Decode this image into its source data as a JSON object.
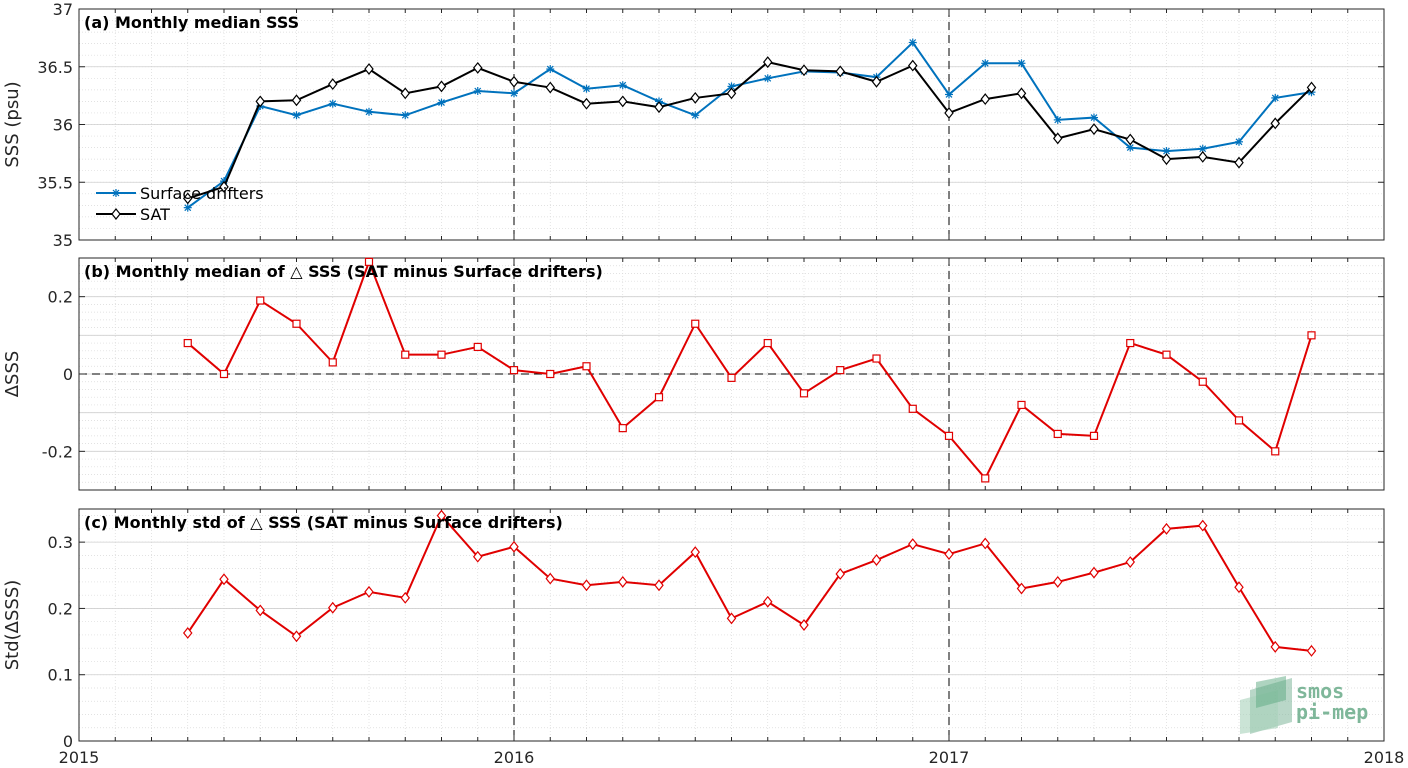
{
  "chart_data": [
    {
      "type": "line",
      "title": "(a) Monthly median SSS",
      "xlabel": "",
      "ylabel": "SSS (psu)",
      "xlim": [
        "2015-01",
        "2018-01"
      ],
      "ylim": [
        35,
        37
      ],
      "yticks": [
        "35",
        "35.5",
        "36",
        "36.5",
        "37"
      ],
      "grid": true,
      "legend": "bottom-left",
      "x": [
        "2015-04",
        "2015-05",
        "2015-06",
        "2015-07",
        "2015-08",
        "2015-09",
        "2015-10",
        "2015-11",
        "2015-12",
        "2016-01",
        "2016-02",
        "2016-03",
        "2016-04",
        "2016-05",
        "2016-06",
        "2016-07",
        "2016-08",
        "2016-09",
        "2016-10",
        "2016-11",
        "2016-12",
        "2017-01",
        "2017-02",
        "2017-03",
        "2017-04",
        "2017-05",
        "2017-06",
        "2017-07",
        "2017-08",
        "2017-09",
        "2017-10",
        "2017-11"
      ],
      "series": [
        {
          "name": "Surface drifters",
          "color": "#0072bd",
          "marker": "asterisk",
          "values": [
            35.28,
            35.51,
            36.16,
            36.08,
            36.18,
            36.11,
            36.08,
            36.19,
            36.29,
            36.27,
            36.48,
            36.31,
            36.34,
            36.2,
            36.08,
            36.33,
            36.4,
            36.46,
            36.45,
            36.41,
            36.71,
            36.26,
            36.53,
            36.53,
            36.04,
            36.06,
            35.8,
            35.77,
            35.79,
            35.85,
            36.23,
            36.28
          ]
        },
        {
          "name": "SAT",
          "color": "#000000",
          "marker": "diamond",
          "values": [
            35.36,
            35.46,
            36.2,
            36.21,
            36.35,
            36.48,
            36.27,
            36.33,
            36.49,
            36.37,
            36.32,
            36.18,
            36.2,
            36.15,
            36.23,
            36.27,
            36.54,
            36.47,
            36.46,
            36.37,
            36.51,
            36.1,
            36.22,
            36.27,
            35.88,
            35.96,
            35.87,
            35.7,
            35.72,
            35.67,
            36.01,
            36.32
          ]
        }
      ]
    },
    {
      "type": "line",
      "title": "(b) Monthly median of △ SSS (SAT minus Surface drifters)",
      "xlabel": "",
      "ylabel": "ΔSSS",
      "xlim": [
        "2015-01",
        "2018-01"
      ],
      "ylim": [
        -0.3,
        0.3
      ],
      "yticks": [
        "-0.2",
        "0",
        "0.2"
      ],
      "grid": true,
      "zero_line": true,
      "x": [
        "2015-04",
        "2015-05",
        "2015-06",
        "2015-07",
        "2015-08",
        "2015-09",
        "2015-10",
        "2015-11",
        "2015-12",
        "2016-01",
        "2016-02",
        "2016-03",
        "2016-04",
        "2016-05",
        "2016-06",
        "2016-07",
        "2016-08",
        "2016-09",
        "2016-10",
        "2016-11",
        "2016-12",
        "2017-01",
        "2017-02",
        "2017-03",
        "2017-04",
        "2017-05",
        "2017-06",
        "2017-07",
        "2017-08",
        "2017-09",
        "2017-10",
        "2017-11"
      ],
      "series": [
        {
          "color": "#e00000",
          "marker": "square",
          "values": [
            0.08,
            0.0,
            0.19,
            0.13,
            0.03,
            0.29,
            0.05,
            0.05,
            0.07,
            0.01,
            0.0,
            0.02,
            -0.14,
            -0.06,
            0.13,
            -0.01,
            0.08,
            -0.05,
            0.01,
            0.04,
            -0.09,
            -0.16,
            -0.27,
            -0.08,
            -0.155,
            -0.16,
            0.08,
            0.05,
            -0.02,
            -0.12,
            -0.2,
            0.1
          ]
        }
      ]
    },
    {
      "type": "line",
      "title": "(c) Monthly std of △ SSS (SAT minus Surface drifters)",
      "xlabel": "",
      "ylabel": "Std(ΔSSS)",
      "xlim": [
        "2015-01",
        "2018-01"
      ],
      "ylim": [
        0,
        0.35
      ],
      "yticks": [
        "0",
        "0.1",
        "0.2",
        "0.3"
      ],
      "xticks": [
        "2015",
        "2016",
        "2017",
        "2018"
      ],
      "grid": true,
      "x": [
        "2015-04",
        "2015-05",
        "2015-06",
        "2015-07",
        "2015-08",
        "2015-09",
        "2015-10",
        "2015-11",
        "2015-12",
        "2016-01",
        "2016-02",
        "2016-03",
        "2016-04",
        "2016-05",
        "2016-06",
        "2016-07",
        "2016-08",
        "2016-09",
        "2016-10",
        "2016-11",
        "2016-12",
        "2017-01",
        "2017-02",
        "2017-03",
        "2017-04",
        "2017-05",
        "2017-06",
        "2017-07",
        "2017-08",
        "2017-09",
        "2017-10",
        "2017-11"
      ],
      "series": [
        {
          "color": "#e00000",
          "marker": "diamond",
          "values": [
            0.163,
            0.244,
            0.197,
            0.158,
            0.201,
            0.225,
            0.216,
            0.34,
            0.278,
            0.293,
            0.245,
            0.235,
            0.24,
            0.235,
            0.285,
            0.185,
            0.21,
            0.175,
            0.252,
            0.273,
            0.297,
            0.282,
            0.298,
            0.23,
            0.24,
            0.254,
            0.27,
            0.32,
            0.325,
            0.232,
            0.142,
            0.136
          ]
        }
      ]
    }
  ],
  "logo": {
    "line1": "smos",
    "line2": "pi-mep",
    "color": "#7fb79a"
  }
}
